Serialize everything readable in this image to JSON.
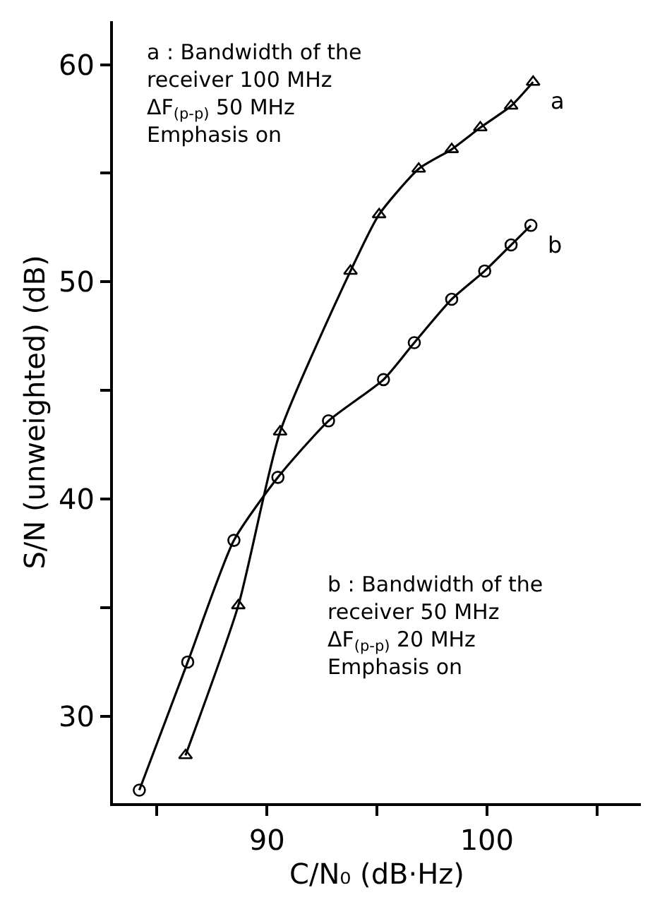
{
  "chart_data": {
    "type": "line",
    "xlabel": "C/N₀ (dB·Hz)",
    "ylabel": "S/N (unweighted) (dB)",
    "xlim": [
      83,
      107
    ],
    "ylim": [
      26,
      62
    ],
    "xticks": [
      {
        "value": 85,
        "label": null
      },
      90,
      {
        "value": 95,
        "label": null
      },
      100,
      {
        "value": 105,
        "label": null
      }
    ],
    "yticks": [
      30,
      {
        "value": 35,
        "label": null
      },
      40,
      {
        "value": 45,
        "label": null
      },
      50,
      {
        "value": 55,
        "label": null
      },
      60
    ],
    "legend": false,
    "line_style": "solid",
    "series": [
      {
        "name": "a",
        "color": "#000000",
        "marker": "triangle",
        "x": [
          86.3,
          88.7,
          90.6,
          93.8,
          95.1,
          96.9,
          98.4,
          99.7,
          101.1,
          102.1
        ],
        "values": [
          28.2,
          35.1,
          43.1,
          50.5,
          53.1,
          55.2,
          56.1,
          57.1,
          58.1,
          59.2
        ]
      },
      {
        "name": "b",
        "color": "#000000",
        "marker": "circle",
        "x": [
          84.2,
          86.4,
          88.5,
          90.5,
          92.8,
          95.3,
          96.7,
          98.4,
          99.9,
          101.1,
          102.0
        ],
        "values": [
          26.6,
          32.5,
          38.1,
          41.0,
          43.6,
          45.5,
          47.2,
          49.2,
          50.5,
          51.7,
          52.6
        ]
      }
    ],
    "annotations": [
      "a : Bandwidth of the\nreceiver 100 MHz\nΔF$_{(p-p)}$ 50 MHz\nEmphasis on",
      "b : Bandwidth of the\nreceiver 50 MHz\nΔF$_{(p-p)}$ 20 MHz\nEmphasis on"
    ]
  }
}
